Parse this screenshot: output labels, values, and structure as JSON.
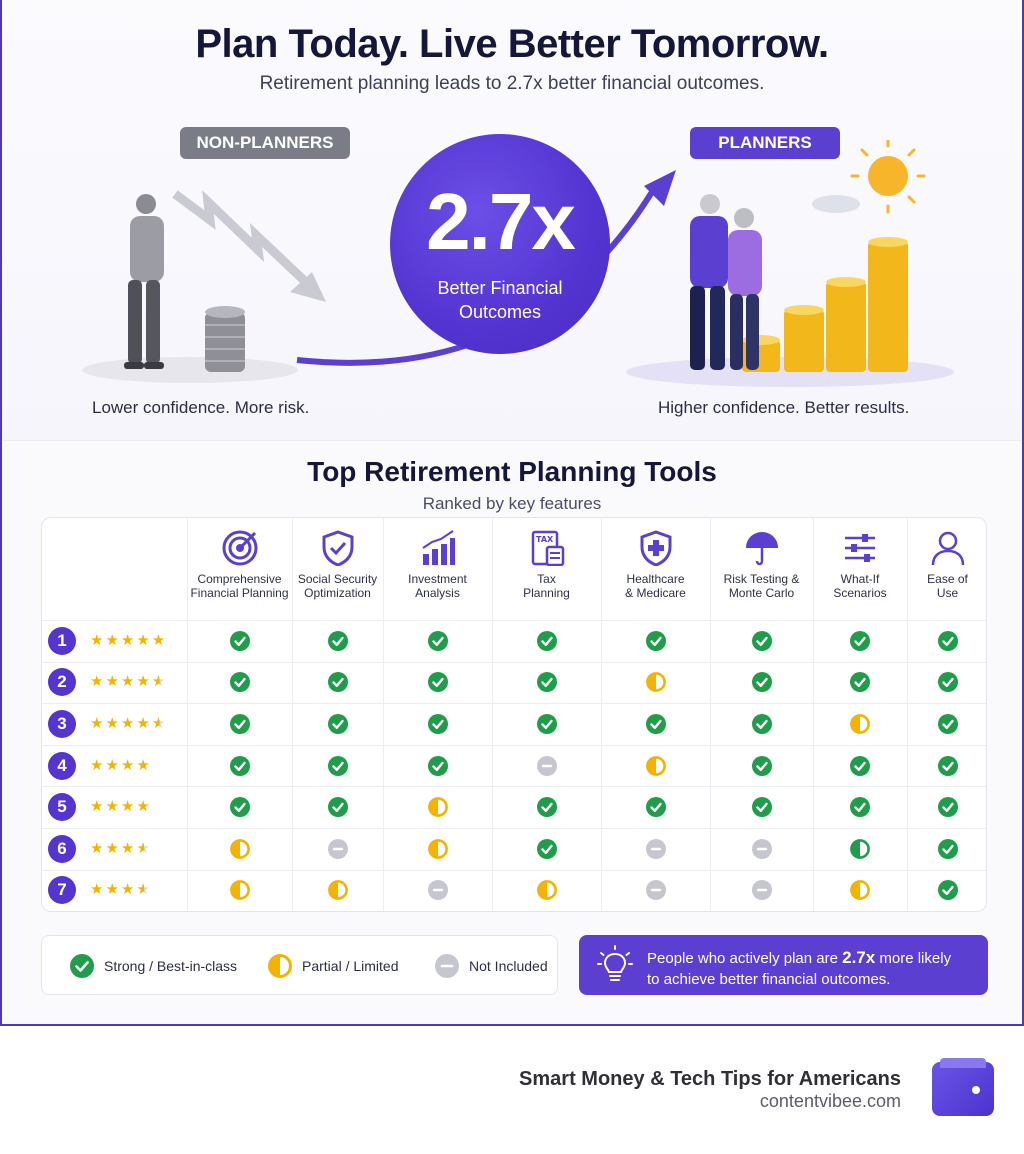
{
  "header": {
    "title": "Plan Today. Live Better Tomorrow.",
    "subtitle": "Retirement planning leads to 2.7x better financial outcomes."
  },
  "comparison": {
    "non_planners_label": "NON-PLANNERS",
    "planners_label": "PLANNERS",
    "multiplier": "2.7x",
    "multiplier_caption_1": "Better Financial",
    "multiplier_caption_2": "Outcomes",
    "left_caption": "Lower confidence. More risk.",
    "right_caption": "Higher confidence. Better results."
  },
  "tools": {
    "title": "Top Retirement Planning Tools",
    "subtitle": "Ranked by key features",
    "columns": [
      {
        "l1": "Comprehensive",
        "l2": "Financial Planning",
        "icon": "target-icon"
      },
      {
        "l1": "Social Security",
        "l2": "Optimization",
        "icon": "shield-check-icon"
      },
      {
        "l1": "Investment",
        "l2": "Analysis",
        "icon": "bar-chart-icon"
      },
      {
        "l1": "Tax",
        "l2": "Planning",
        "icon": "tax-calculator-icon"
      },
      {
        "l1": "Healthcare",
        "l2": "& Medicare",
        "icon": "medical-shield-icon"
      },
      {
        "l1": "Risk Testing &",
        "l2": "Monte Carlo",
        "icon": "umbrella-icon"
      },
      {
        "l1": "What-If",
        "l2": "Scenarios",
        "icon": "sliders-icon"
      },
      {
        "l1": "Ease of",
        "l2": "Use",
        "icon": "user-icon"
      }
    ],
    "rows": [
      {
        "rank": "1",
        "stars": 5,
        "marks": [
          "full",
          "full",
          "full",
          "full",
          "full",
          "full",
          "full",
          "full"
        ]
      },
      {
        "rank": "2",
        "stars": 4.5,
        "marks": [
          "full",
          "full",
          "full",
          "full",
          "partial",
          "full",
          "full",
          "full"
        ]
      },
      {
        "rank": "3",
        "stars": 4.5,
        "marks": [
          "full",
          "full",
          "full",
          "full",
          "full",
          "full",
          "partial",
          "full"
        ]
      },
      {
        "rank": "4",
        "stars": 4,
        "marks": [
          "full",
          "full",
          "full",
          "none",
          "partial",
          "full",
          "full",
          "full"
        ]
      },
      {
        "rank": "5",
        "stars": 4,
        "marks": [
          "full",
          "full",
          "partial",
          "full",
          "full",
          "full",
          "full",
          "full"
        ]
      },
      {
        "rank": "6",
        "stars": 3.5,
        "marks": [
          "partial",
          "none",
          "partial",
          "full",
          "none",
          "none",
          "partial-green",
          "full"
        ]
      },
      {
        "rank": "7",
        "stars": 3.5,
        "marks": [
          "partial",
          "partial",
          "none",
          "partial",
          "none",
          "none",
          "partial",
          "full"
        ]
      }
    ]
  },
  "legend": {
    "strong": "Strong / Best-in-class",
    "partial": "Partial / Limited",
    "none": "Not Included"
  },
  "callout": {
    "text_before": "People who actively plan are ",
    "highlight": "2.7x",
    "text_after": " more likely",
    "line2": "to achieve better financial outcomes."
  },
  "footer": {
    "title": "Smart Money & Tech Tips for Americans",
    "url": "contentvibee.com"
  },
  "colors": {
    "accent": "#5a3fd0",
    "strong": "#1f9d4a",
    "partial": "#f5b301",
    "none": "#c5c6cf",
    "star": "#f5b301"
  }
}
